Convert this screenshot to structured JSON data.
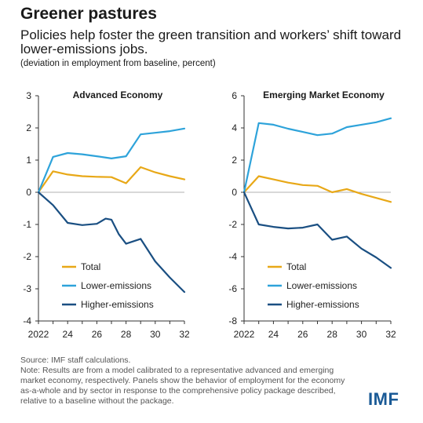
{
  "header": {
    "title": "Greener pastures",
    "subtitle": "Policies help foster the green transition and workers’ shift toward lower-emissions jobs.",
    "units": "(deviation in employment from baseline, percent)"
  },
  "footer": {
    "source": "Source: IMF staff calculations.",
    "note": "Note: Results are from a model calibrated to a representative advanced and emerging market economy, respectively. Panels show the behavior of employment for the economy as-a-whole and by sector in response to the comprehensive policy package described, relative to a baseline without the package.",
    "logo": "IMF"
  },
  "colors": {
    "total": "#e8a817",
    "lower": "#2ea3da",
    "higher": "#1a4f82",
    "axis": "#333333"
  },
  "chart_data": [
    {
      "type": "line",
      "title": "Advanced Economy",
      "x": [
        2022,
        2023,
        2024,
        2025,
        2026,
        2027,
        2028,
        2029,
        2030,
        2031,
        2032
      ],
      "xticks": [
        2022,
        2024,
        2026,
        2028,
        2030,
        2032
      ],
      "xtick_labels": [
        "2022",
        "24",
        "26",
        "28",
        "30",
        "32"
      ],
      "ylim": [
        -4,
        3
      ],
      "yticks": [
        -4,
        -3,
        -2,
        -1,
        0,
        1,
        2,
        3
      ],
      "ytick_labels": [
        "-4",
        "-3",
        "-2",
        "-1",
        "0",
        "1",
        "2",
        "3"
      ],
      "series": [
        {
          "name": "Total",
          "color_key": "total",
          "x": [
            2022,
            2023,
            2024,
            2025,
            2026,
            2027,
            2028,
            2029,
            2030,
            2031,
            2032
          ],
          "y": [
            0,
            0.65,
            0.55,
            0.5,
            0.48,
            0.47,
            0.28,
            0.78,
            0.62,
            0.5,
            0.4
          ]
        },
        {
          "name": "Lower-emissions",
          "color_key": "lower",
          "x": [
            2022,
            2023,
            2024,
            2025,
            2026,
            2027,
            2028,
            2029,
            2030,
            2031,
            2032
          ],
          "y": [
            0,
            1.1,
            1.22,
            1.18,
            1.12,
            1.05,
            1.12,
            1.8,
            1.85,
            1.9,
            1.98
          ]
        },
        {
          "name": "Higher-emissions",
          "color_key": "higher",
          "x": [
            2022,
            2023,
            2024,
            2025,
            2026,
            2026.6,
            2027,
            2027.5,
            2028,
            2029,
            2030,
            2031,
            2032
          ],
          "y": [
            0,
            -0.4,
            -0.95,
            -1.02,
            -0.98,
            -0.82,
            -0.85,
            -1.3,
            -1.6,
            -1.45,
            -2.15,
            -2.65,
            -3.1
          ]
        }
      ],
      "legend": "bottom-left"
    },
    {
      "type": "line",
      "title": "Emerging Market Economy",
      "x": [
        2022,
        2023,
        2024,
        2025,
        2026,
        2027,
        2028,
        2029,
        2030,
        2031,
        2032
      ],
      "xticks": [
        2022,
        2024,
        2026,
        2028,
        2030,
        2032
      ],
      "xtick_labels": [
        "2022",
        "24",
        "26",
        "28",
        "30",
        "32"
      ],
      "ylim": [
        -8,
        6
      ],
      "yticks": [
        -8,
        -6,
        -4,
        -2,
        0,
        2,
        4,
        6
      ],
      "ytick_labels": [
        "-8",
        "-6",
        "-4",
        "-2",
        "0",
        "2",
        "4",
        "6"
      ],
      "series": [
        {
          "name": "Total",
          "color_key": "total",
          "x": [
            2022,
            2023,
            2024,
            2025,
            2026,
            2027,
            2028,
            2029,
            2030,
            2031,
            2032
          ],
          "y": [
            0,
            1.0,
            0.8,
            0.6,
            0.45,
            0.4,
            0.0,
            0.2,
            -0.1,
            -0.35,
            -0.6
          ]
        },
        {
          "name": "Lower-emissions",
          "color_key": "lower",
          "x": [
            2022,
            2023,
            2024,
            2025,
            2026,
            2027,
            2028,
            2029,
            2030,
            2031,
            2032
          ],
          "y": [
            0,
            4.3,
            4.2,
            3.95,
            3.75,
            3.55,
            3.65,
            4.05,
            4.2,
            4.35,
            4.6
          ]
        },
        {
          "name": "Higher-emissions",
          "color_key": "higher",
          "x": [
            2022,
            2023,
            2024,
            2025,
            2026,
            2027,
            2028,
            2029,
            2030,
            2031,
            2032
          ],
          "y": [
            0,
            -2.0,
            -2.15,
            -2.25,
            -2.2,
            -2.0,
            -2.95,
            -2.75,
            -3.5,
            -4.05,
            -4.7
          ]
        }
      ],
      "legend": "bottom-left"
    }
  ]
}
